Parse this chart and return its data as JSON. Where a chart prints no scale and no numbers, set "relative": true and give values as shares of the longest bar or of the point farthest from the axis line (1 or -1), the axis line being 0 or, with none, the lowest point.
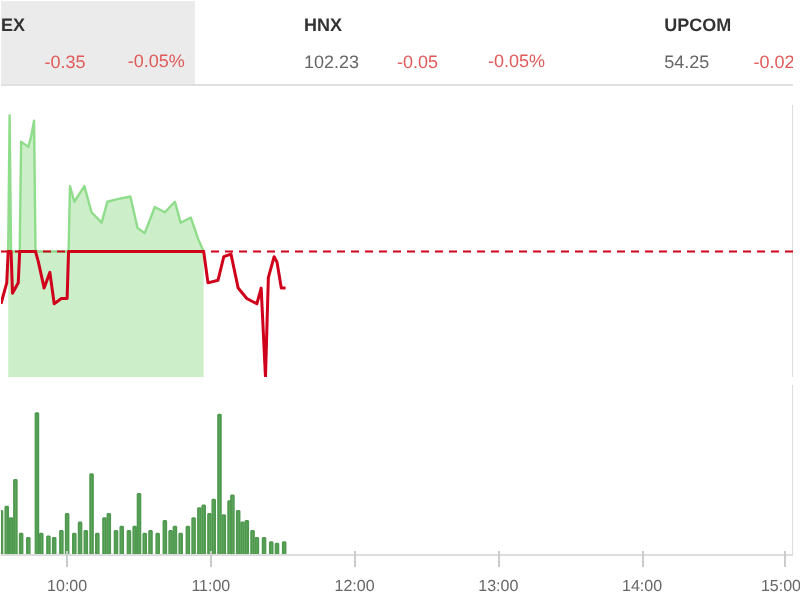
{
  "chart_data": [
    {
      "type": "other",
      "annotations": [
        "EX",
        "-0.35",
        "-0.05%",
        "HNX",
        "102.23",
        "-0.05",
        "-0.05%",
        "UPCOM",
        "54.25",
        "-0.02"
      ]
    },
    {
      "type": "line",
      "relative": true,
      "tick_labels": false,
      "xlim": [
        9.54,
        15.05
      ],
      "ref_lines": [
        {
          "axis": "y",
          "value": 0.48,
          "color": "#d0021b",
          "line_style": "dashed"
        }
      ],
      "series": [
        {
          "type": "area",
          "color": "#8fdc8a",
          "x": [
            9.59,
            9.6,
            9.61,
            9.67,
            9.68,
            9.73,
            9.75,
            9.77,
            9.78,
            10.01,
            10.02,
            10.05,
            10.12,
            10.17,
            10.24,
            10.28,
            10.35,
            10.44,
            10.49,
            10.54,
            10.61,
            10.68,
            10.75,
            10.79,
            10.86,
            10.91,
            10.95
          ],
          "values": [
            0.48,
            1.0,
            0.48,
            0.48,
            0.9,
            0.88,
            0.92,
            0.98,
            0.48,
            0.48,
            0.73,
            0.67,
            0.73,
            0.63,
            0.59,
            0.67,
            0.68,
            0.69,
            0.57,
            0.55,
            0.65,
            0.63,
            0.67,
            0.59,
            0.61,
            0.53,
            0.48
          ]
        },
        {
          "type": "line",
          "color": "#d0021b",
          "x": [
            9.54,
            9.58,
            9.59,
            9.61,
            9.62,
            9.66,
            9.67,
            9.78,
            9.8,
            9.84,
            9.88,
            9.91,
            9.96,
            10.0,
            10.01,
            10.95,
            10.98,
            11.05,
            11.09,
            11.14,
            11.19,
            11.25,
            11.32,
            11.35,
            11.38,
            11.4,
            11.44,
            11.46,
            11.49,
            11.52
          ],
          "values": [
            0.28,
            0.36,
            0.48,
            0.48,
            0.32,
            0.36,
            0.48,
            0.48,
            0.44,
            0.34,
            0.4,
            0.28,
            0.3,
            0.3,
            0.48,
            0.48,
            0.36,
            0.37,
            0.46,
            0.47,
            0.34,
            0.3,
            0.28,
            0.34,
            0.0,
            0.38,
            0.46,
            0.44,
            0.34,
            0.34
          ]
        }
      ]
    },
    {
      "type": "bar",
      "relative": true,
      "tick_labels": "x",
      "xlim": [
        9.54,
        15.05
      ],
      "color": "#4f9a4f",
      "xticks": [
        {
          "value": 10,
          "label": "10:00"
        },
        {
          "value": 11,
          "label": "11:00"
        },
        {
          "value": 12,
          "label": "12:00"
        },
        {
          "value": 13,
          "label": "13:00"
        },
        {
          "value": 14,
          "label": "14:00"
        },
        {
          "value": 15,
          "label": "15:00"
        }
      ],
      "x": [
        9.54,
        9.58,
        9.61,
        9.64,
        9.68,
        9.73,
        9.79,
        9.82,
        9.87,
        9.91,
        9.96,
        10.0,
        10.05,
        10.09,
        10.13,
        10.17,
        10.21,
        10.26,
        10.29,
        10.34,
        10.38,
        10.43,
        10.47,
        10.5,
        10.54,
        10.58,
        10.63,
        10.68,
        10.72,
        10.75,
        10.79,
        10.84,
        10.88,
        10.92,
        10.95,
        10.99,
        11.02,
        11.06,
        11.09,
        11.13,
        11.15,
        11.19,
        11.22,
        11.25,
        11.29,
        11.32,
        11.37,
        11.42,
        11.46,
        11.51
      ],
      "values": [
        0.31,
        0.34,
        0.26,
        0.53,
        0.15,
        0.12,
        1.0,
        0.15,
        0.13,
        0.12,
        0.17,
        0.29,
        0.15,
        0.23,
        0.17,
        0.57,
        0.15,
        0.26,
        0.29,
        0.17,
        0.2,
        0.17,
        0.2,
        0.43,
        0.15,
        0.17,
        0.15,
        0.24,
        0.17,
        0.2,
        0.15,
        0.2,
        0.26,
        0.33,
        0.35,
        0.29,
        0.39,
        0.99,
        0.28,
        0.38,
        0.42,
        0.31,
        0.23,
        0.24,
        0.17,
        0.12,
        0.12,
        0.09,
        0.08,
        0.09
      ]
    }
  ]
}
